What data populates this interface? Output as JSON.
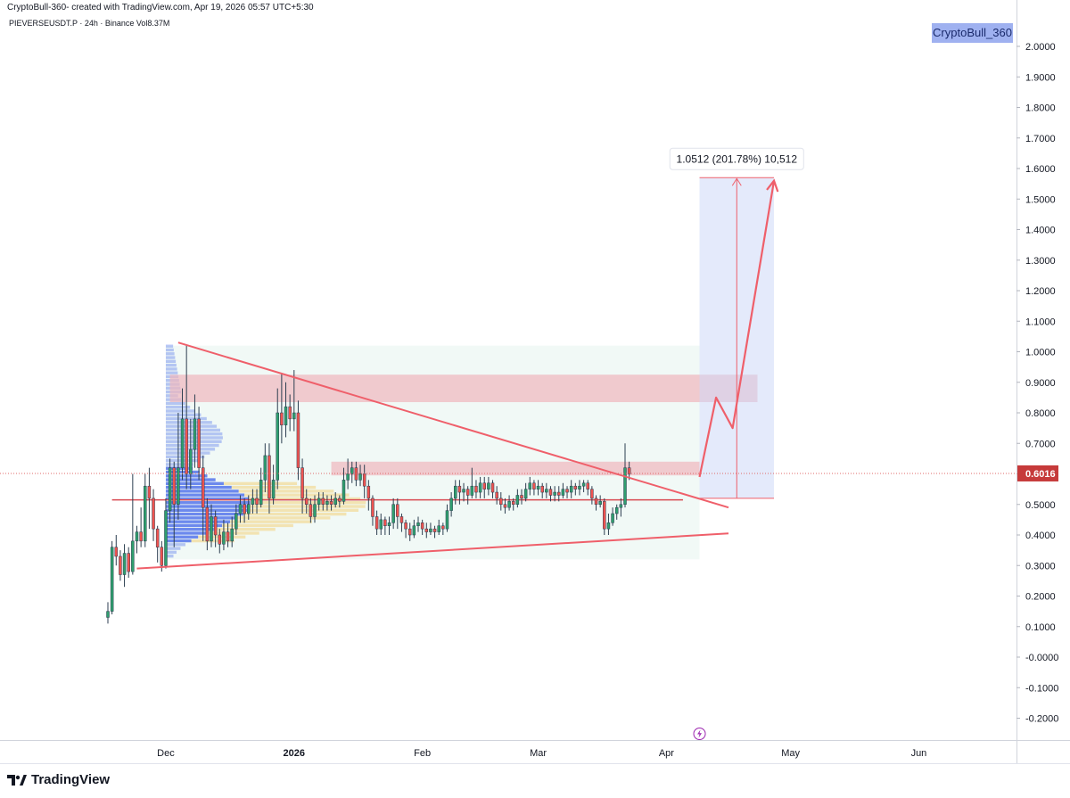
{
  "header": {
    "created_line": "CryptoBull-360- created with TradingView.com, Apr 19, 2026 05:57 UTC+5:30",
    "symbol_line": "PIEVERSEUSDT.P · 24h · Binance  Vol8.37M"
  },
  "watermark": "CryptoBull_360",
  "brand": {
    "name": "TradingView",
    "icon": "tradingview-logo-icon"
  },
  "colors": {
    "up": "#26a69a",
    "down": "#ef5350",
    "candle_body_up": "#2f9e6e",
    "trendline": "#ef5f6a",
    "zone": "#f0b7bd",
    "volume_profile_blue": "#3f63ea",
    "volume_profile_yellow": "#f2d27a",
    "measure_box": "#c9d6f7",
    "price_label_bg": "#c63a3a"
  },
  "chart_data": {
    "type": "candlestick",
    "price_axis": {
      "range": [
        -0.25,
        2.05
      ],
      "ticks": [
        "2.0000",
        "1.9000",
        "1.8000",
        "1.7000",
        "1.6000",
        "1.5000",
        "1.4000",
        "1.3000",
        "1.2000",
        "1.1000",
        "1.0000",
        "0.9000",
        "0.8000",
        "0.7000",
        "0.6000",
        "0.5000",
        "0.4000",
        "0.3000",
        "0.2000",
        "0.1000",
        "-0.0000",
        "-0.1000",
        "-0.2000"
      ],
      "current_price": "0.6016"
    },
    "time_axis": {
      "labels": [
        {
          "text": "Dec",
          "day": 14,
          "strong": false
        },
        {
          "text": "2026",
          "day": 45,
          "strong": true
        },
        {
          "text": "Feb",
          "day": 76,
          "strong": false
        },
        {
          "text": "Mar",
          "day": 104,
          "strong": false
        },
        {
          "text": "Apr",
          "day": 135,
          "strong": false
        },
        {
          "text": "May",
          "day": 165,
          "strong": false
        },
        {
          "text": "Jun",
          "day": 196,
          "strong": false
        }
      ]
    },
    "measure": {
      "label": "1.0512 (201.78%) 10,512",
      "from_price": 0.52,
      "to_price": 1.57,
      "from_day": 143,
      "to_day": 161
    },
    "resistance_zones": [
      {
        "from_day": 15,
        "to_day": 157,
        "low": 0.835,
        "high": 0.925
      },
      {
        "from_day": 54,
        "to_day": 143,
        "low": 0.595,
        "high": 0.64
      }
    ],
    "horizontal_level": {
      "price": 0.515,
      "from_day": 1,
      "to_day": 139
    },
    "trendlines": [
      {
        "from": [
          17,
          1.03
        ],
        "to": [
          150,
          0.49
        ]
      },
      {
        "from": [
          7,
          0.29
        ],
        "to": [
          150,
          0.405
        ]
      }
    ],
    "projection_path": [
      [
        143,
        0.59
      ],
      [
        147,
        0.85
      ],
      [
        151,
        0.75
      ],
      [
        161,
        1.56
      ]
    ],
    "value_area": {
      "from_day": 14,
      "to_day": 143,
      "low": 0.32,
      "high": 1.02
    },
    "candles": [
      [
        0.13,
        0.15,
        0.11,
        0.18
      ],
      [
        0.15,
        0.36,
        0.14,
        0.38
      ],
      [
        0.36,
        0.33,
        0.3,
        0.4
      ],
      [
        0.33,
        0.27,
        0.25,
        0.35
      ],
      [
        0.27,
        0.34,
        0.23,
        0.37
      ],
      [
        0.34,
        0.28,
        0.26,
        0.36
      ],
      [
        0.28,
        0.38,
        0.27,
        0.6
      ],
      [
        0.38,
        0.41,
        0.34,
        0.43
      ],
      [
        0.41,
        0.38,
        0.36,
        0.49
      ],
      [
        0.38,
        0.56,
        0.36,
        0.6
      ],
      [
        0.56,
        0.52,
        0.42,
        0.62
      ],
      [
        0.52,
        0.42,
        0.38,
        0.55
      ],
      [
        0.42,
        0.36,
        0.31,
        0.43
      ],
      [
        0.36,
        0.3,
        0.28,
        0.38
      ],
      [
        0.3,
        0.48,
        0.29,
        0.52
      ],
      [
        0.48,
        0.62,
        0.44,
        0.65
      ],
      [
        0.62,
        0.5,
        0.36,
        0.64
      ],
      [
        0.5,
        0.62,
        0.45,
        0.8
      ],
      [
        0.62,
        0.78,
        0.58,
        0.88
      ],
      [
        0.78,
        0.6,
        0.55,
        1.02
      ],
      [
        0.6,
        0.68,
        0.55,
        0.78
      ],
      [
        0.68,
        0.78,
        0.62,
        0.86
      ],
      [
        0.78,
        0.62,
        0.58,
        0.82
      ],
      [
        0.62,
        0.49,
        0.38,
        0.66
      ],
      [
        0.49,
        0.38,
        0.35,
        0.52
      ],
      [
        0.38,
        0.46,
        0.36,
        0.5
      ],
      [
        0.46,
        0.4,
        0.36,
        0.48
      ],
      [
        0.4,
        0.37,
        0.34,
        0.42
      ],
      [
        0.37,
        0.41,
        0.35,
        0.45
      ],
      [
        0.41,
        0.38,
        0.36,
        0.44
      ],
      [
        0.38,
        0.42,
        0.36,
        0.46
      ],
      [
        0.42,
        0.47,
        0.4,
        0.5
      ],
      [
        0.47,
        0.5,
        0.44,
        0.53
      ],
      [
        0.5,
        0.47,
        0.44,
        0.52
      ],
      [
        0.47,
        0.5,
        0.45,
        0.53
      ],
      [
        0.5,
        0.52,
        0.47,
        0.55
      ],
      [
        0.52,
        0.5,
        0.47,
        0.55
      ],
      [
        0.5,
        0.58,
        0.49,
        0.62
      ],
      [
        0.58,
        0.66,
        0.54,
        0.7
      ],
      [
        0.66,
        0.52,
        0.47,
        0.7
      ],
      [
        0.52,
        0.58,
        0.5,
        0.63
      ],
      [
        0.58,
        0.8,
        0.55,
        0.88
      ],
      [
        0.8,
        0.76,
        0.7,
        0.93
      ],
      [
        0.76,
        0.82,
        0.72,
        0.9
      ],
      [
        0.82,
        0.78,
        0.74,
        0.86
      ],
      [
        0.78,
        0.8,
        0.74,
        0.94
      ],
      [
        0.8,
        0.62,
        0.58,
        0.84
      ],
      [
        0.62,
        0.52,
        0.47,
        0.65
      ],
      [
        0.52,
        0.5,
        0.47,
        0.55
      ],
      [
        0.5,
        0.46,
        0.44,
        0.52
      ],
      [
        0.46,
        0.5,
        0.44,
        0.53
      ],
      [
        0.5,
        0.52,
        0.48,
        0.54
      ],
      [
        0.52,
        0.5,
        0.48,
        0.54
      ],
      [
        0.5,
        0.51,
        0.48,
        0.53
      ],
      [
        0.51,
        0.5,
        0.48,
        0.53
      ],
      [
        0.5,
        0.52,
        0.49,
        0.54
      ],
      [
        0.52,
        0.51,
        0.49,
        0.53
      ],
      [
        0.51,
        0.58,
        0.5,
        0.62
      ],
      [
        0.58,
        0.6,
        0.55,
        0.65
      ],
      [
        0.6,
        0.62,
        0.57,
        0.64
      ],
      [
        0.62,
        0.58,
        0.56,
        0.64
      ],
      [
        0.58,
        0.6,
        0.56,
        0.63
      ],
      [
        0.6,
        0.56,
        0.52,
        0.63
      ],
      [
        0.56,
        0.52,
        0.48,
        0.58
      ],
      [
        0.52,
        0.46,
        0.43,
        0.53
      ],
      [
        0.46,
        0.42,
        0.4,
        0.48
      ],
      [
        0.42,
        0.45,
        0.4,
        0.47
      ],
      [
        0.45,
        0.43,
        0.4,
        0.46
      ],
      [
        0.43,
        0.44,
        0.4,
        0.46
      ],
      [
        0.44,
        0.5,
        0.42,
        0.52
      ],
      [
        0.5,
        0.46,
        0.42,
        0.52
      ],
      [
        0.46,
        0.44,
        0.41,
        0.47
      ],
      [
        0.44,
        0.42,
        0.39,
        0.45
      ],
      [
        0.42,
        0.4,
        0.38,
        0.44
      ],
      [
        0.4,
        0.43,
        0.39,
        0.45
      ],
      [
        0.43,
        0.44,
        0.41,
        0.46
      ],
      [
        0.44,
        0.42,
        0.4,
        0.45
      ],
      [
        0.42,
        0.41,
        0.39,
        0.44
      ],
      [
        0.41,
        0.42,
        0.4,
        0.44
      ],
      [
        0.42,
        0.41,
        0.39,
        0.43
      ],
      [
        0.41,
        0.43,
        0.4,
        0.45
      ],
      [
        0.43,
        0.42,
        0.4,
        0.44
      ],
      [
        0.42,
        0.48,
        0.41,
        0.5
      ],
      [
        0.48,
        0.52,
        0.46,
        0.54
      ],
      [
        0.52,
        0.56,
        0.5,
        0.58
      ],
      [
        0.56,
        0.54,
        0.5,
        0.58
      ],
      [
        0.54,
        0.55,
        0.51,
        0.57
      ],
      [
        0.55,
        0.53,
        0.5,
        0.56
      ],
      [
        0.53,
        0.56,
        0.52,
        0.62
      ],
      [
        0.56,
        0.54,
        0.52,
        0.58
      ],
      [
        0.54,
        0.57,
        0.52,
        0.59
      ],
      [
        0.57,
        0.55,
        0.52,
        0.59
      ],
      [
        0.55,
        0.57,
        0.53,
        0.59
      ],
      [
        0.57,
        0.54,
        0.52,
        0.58
      ],
      [
        0.54,
        0.52,
        0.5,
        0.56
      ],
      [
        0.52,
        0.5,
        0.48,
        0.54
      ],
      [
        0.5,
        0.49,
        0.47,
        0.52
      ],
      [
        0.49,
        0.51,
        0.48,
        0.53
      ],
      [
        0.51,
        0.5,
        0.48,
        0.52
      ],
      [
        0.5,
        0.53,
        0.49,
        0.55
      ],
      [
        0.53,
        0.52,
        0.5,
        0.55
      ],
      [
        0.52,
        0.55,
        0.51,
        0.57
      ],
      [
        0.55,
        0.57,
        0.53,
        0.59
      ],
      [
        0.57,
        0.55,
        0.53,
        0.58
      ],
      [
        0.55,
        0.56,
        0.53,
        0.58
      ],
      [
        0.56,
        0.54,
        0.52,
        0.57
      ],
      [
        0.54,
        0.55,
        0.52,
        0.57
      ],
      [
        0.55,
        0.53,
        0.51,
        0.56
      ],
      [
        0.53,
        0.54,
        0.51,
        0.56
      ],
      [
        0.54,
        0.53,
        0.51,
        0.56
      ],
      [
        0.53,
        0.55,
        0.52,
        0.57
      ],
      [
        0.55,
        0.54,
        0.52,
        0.56
      ],
      [
        0.54,
        0.56,
        0.52,
        0.58
      ],
      [
        0.56,
        0.55,
        0.53,
        0.57
      ],
      [
        0.55,
        0.56,
        0.53,
        0.58
      ],
      [
        0.56,
        0.57,
        0.54,
        0.58
      ],
      [
        0.57,
        0.55,
        0.53,
        0.58
      ],
      [
        0.55,
        0.52,
        0.5,
        0.56
      ],
      [
        0.52,
        0.5,
        0.48,
        0.53
      ],
      [
        0.5,
        0.51,
        0.49,
        0.53
      ],
      [
        0.51,
        0.42,
        0.4,
        0.52
      ],
      [
        0.42,
        0.44,
        0.4,
        0.47
      ],
      [
        0.44,
        0.47,
        0.43,
        0.49
      ],
      [
        0.47,
        0.49,
        0.45,
        0.5
      ],
      [
        0.49,
        0.5,
        0.46,
        0.52
      ],
      [
        0.5,
        0.62,
        0.49,
        0.7
      ],
      [
        0.62,
        0.6,
        0.58,
        0.64
      ]
    ]
  }
}
